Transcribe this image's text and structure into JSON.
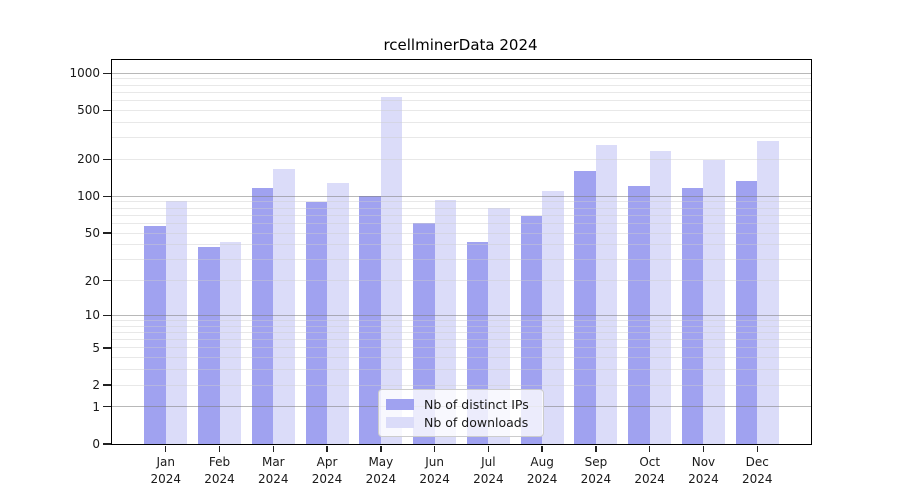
{
  "chart_data": {
    "type": "bar",
    "title": "rcellminerData 2024",
    "categories": [
      "Jan",
      "Feb",
      "Mar",
      "Apr",
      "May",
      "Jun",
      "Jul",
      "Aug",
      "Sep",
      "Oct",
      "Nov",
      "Dec"
    ],
    "category_year": "2024",
    "series": [
      {
        "name": "Nb of distinct IPs",
        "slug": "distinct-ips",
        "color": "#a0a2f0",
        "values": [
          57,
          38,
          116,
          90,
          101,
          60,
          42,
          69,
          161,
          121,
          116,
          133
        ]
      },
      {
        "name": "Nb of downloads",
        "slug": "downloads",
        "color": "#dbdcf9",
        "values": [
          91,
          42,
          166,
          129,
          645,
          94,
          81,
          111,
          263,
          236,
          199,
          283
        ]
      }
    ],
    "xlabel": "",
    "ylabel": "",
    "yticks": [
      0,
      1,
      2,
      5,
      10,
      20,
      50,
      100,
      200,
      500,
      1000
    ],
    "yscale": "log1p",
    "ylim": [
      0,
      1290
    ],
    "grid": "horizontal major and minor log gridlines",
    "legend_position": "lower center",
    "bar_layout": "paired, distinct-IPs bar left of month tick, downloads bar right"
  }
}
